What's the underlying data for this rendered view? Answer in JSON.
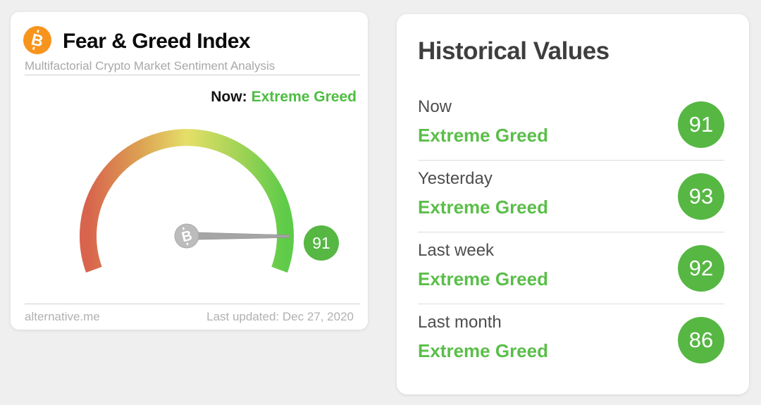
{
  "page": {
    "background_color": "#efefef"
  },
  "gauge_card": {
    "logo_icon": "bitcoin-icon",
    "title": "Fear & Greed Index",
    "subtitle": "Multifactorial Crypto Market Sentiment Analysis",
    "now_label": "Now:",
    "now_value": "Extreme Greed",
    "badge_value": "91",
    "footer_source": "alternative.me",
    "footer_updated": "Last updated: Dec 27, 2020"
  },
  "historical_card": {
    "title": "Historical Values",
    "rows": [
      {
        "label": "Now",
        "classification": "Extreme Greed",
        "value": "91"
      },
      {
        "label": "Yesterday",
        "classification": "Extreme Greed",
        "value": "93"
      },
      {
        "label": "Last week",
        "classification": "Extreme Greed",
        "value": "92"
      },
      {
        "label": "Last month",
        "classification": "Extreme Greed",
        "value": "86"
      }
    ]
  },
  "colors": {
    "accent_green": "#56b743",
    "text_green": "#5bbe4a",
    "bitcoin_orange": "#f7941d",
    "needle_gray": "#a5a5a5"
  },
  "chart_data": [
    {
      "type": "gauge",
      "title": "Fear & Greed Index",
      "subtitle": "Multifactorial Crypto Market Sentiment Analysis",
      "value": 91,
      "min": 0,
      "max": 100,
      "classification": "Extreme Greed",
      "start_angle_deg": 200,
      "sweep_deg": 220,
      "gradient_stops": [
        "#d8644d",
        "#dc9e52",
        "#e5df68",
        "#a6d457",
        "#5ecb49"
      ],
      "needle_color": "#a5a5a5",
      "badge_color": "#56b743",
      "source": "alternative.me",
      "last_updated": "Dec 27, 2020"
    },
    {
      "type": "table",
      "title": "Historical Values",
      "columns": [
        "period",
        "classification",
        "value"
      ],
      "rows": [
        [
          "Now",
          "Extreme Greed",
          91
        ],
        [
          "Yesterday",
          "Extreme Greed",
          93
        ],
        [
          "Last week",
          "Extreme Greed",
          92
        ],
        [
          "Last month",
          "Extreme Greed",
          86
        ]
      ]
    }
  ]
}
